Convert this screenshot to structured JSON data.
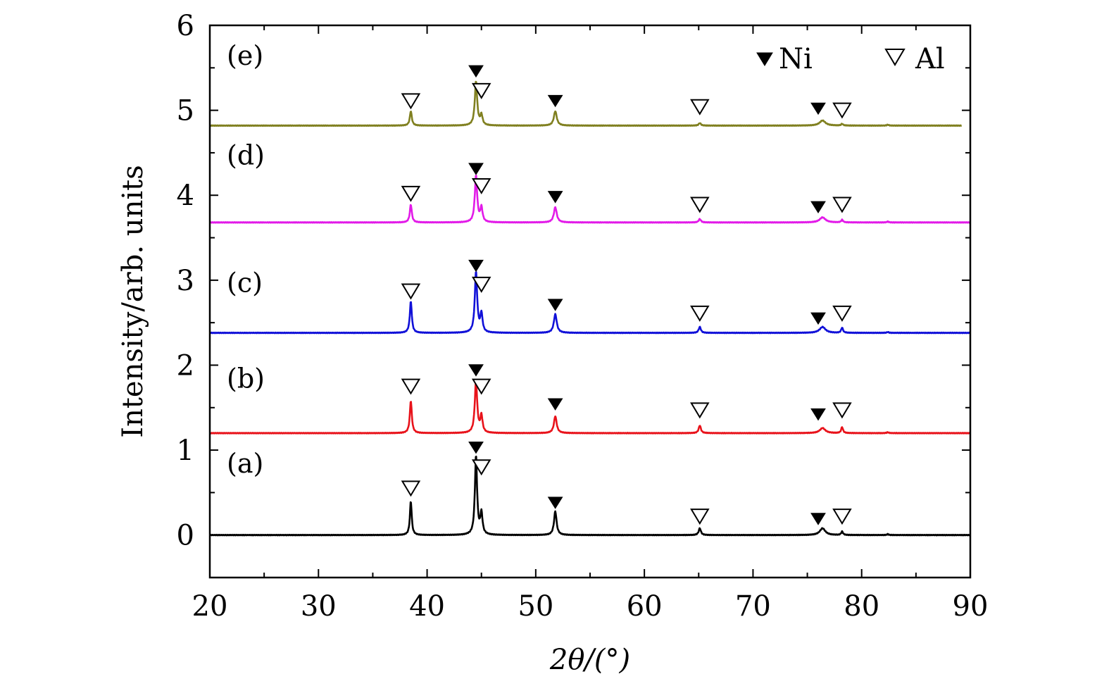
{
  "chart_data": {
    "type": "line",
    "title": "",
    "xlabel": "2θ/(°)",
    "ylabel": "Intensity/arb. units",
    "xlim": [
      20,
      90
    ],
    "ylim": [
      -0.5,
      6
    ],
    "xticks": [
      20,
      30,
      40,
      50,
      60,
      70,
      80,
      90
    ],
    "xtick_labels": [
      "20",
      "30",
      "40",
      "50",
      "60",
      "70",
      "80",
      "90"
    ],
    "yticks": [
      0,
      1,
      2,
      3,
      4,
      5,
      6
    ],
    "ytick_labels": [
      "0",
      "1",
      "2",
      "3",
      "4",
      "5",
      "6"
    ],
    "legend": {
      "position": "top-right",
      "entries": [
        {
          "symbol": "filled-down-triangle",
          "label": "Ni"
        },
        {
          "symbol": "open-down-triangle",
          "label": "Al"
        }
      ]
    },
    "peak_positions": {
      "Al": [
        38.5,
        44.7,
        65.1,
        78.2
      ],
      "Ni": [
        44.5,
        51.8,
        76.4
      ]
    },
    "series": [
      {
        "name": "(a)",
        "color": "#000000",
        "baseline": 0.0,
        "x_end": 90,
        "peaks": [
          [
            38.5,
            0.4,
            0.1
          ],
          [
            44.5,
            0.93,
            0.12
          ],
          [
            45.0,
            0.25,
            0.12
          ],
          [
            51.8,
            0.28,
            0.14
          ],
          [
            65.1,
            0.08,
            0.12
          ],
          [
            76.4,
            0.08,
            0.3
          ],
          [
            78.2,
            0.04,
            0.1
          ],
          [
            82.4,
            0.01,
            0.1
          ]
        ],
        "markers": [
          {
            "symbol": "open-down-triangle",
            "x": 38.5,
            "y": 0.55
          },
          {
            "symbol": "filled-down-triangle",
            "x": 44.5,
            "y": 1.03
          },
          {
            "symbol": "open-down-triangle",
            "x": 45.0,
            "y": 0.8
          },
          {
            "symbol": "filled-down-triangle",
            "x": 51.8,
            "y": 0.38
          },
          {
            "symbol": "open-down-triangle",
            "x": 65.1,
            "y": 0.22
          },
          {
            "symbol": "filled-down-triangle",
            "x": 76.0,
            "y": 0.19
          },
          {
            "symbol": "open-down-triangle",
            "x": 78.2,
            "y": 0.22
          }
        ]
      },
      {
        "name": "(b)",
        "color": "#e8121a",
        "baseline": 1.2,
        "x_end": 90,
        "peaks": [
          [
            38.5,
            0.38,
            0.11
          ],
          [
            44.5,
            0.62,
            0.13
          ],
          [
            45.0,
            0.2,
            0.12
          ],
          [
            51.8,
            0.2,
            0.15
          ],
          [
            65.1,
            0.09,
            0.12
          ],
          [
            76.4,
            0.06,
            0.3
          ],
          [
            78.2,
            0.07,
            0.1
          ],
          [
            82.4,
            0.01,
            0.1
          ]
        ],
        "markers": [
          {
            "symbol": "open-down-triangle",
            "x": 38.5,
            "y": 1.75
          },
          {
            "symbol": "filled-down-triangle",
            "x": 44.5,
            "y": 1.94
          },
          {
            "symbol": "open-down-triangle",
            "x": 45.0,
            "y": 1.75
          },
          {
            "symbol": "filled-down-triangle",
            "x": 51.8,
            "y": 1.54
          },
          {
            "symbol": "open-down-triangle",
            "x": 65.1,
            "y": 1.47
          },
          {
            "symbol": "filled-down-triangle",
            "x": 76.0,
            "y": 1.42
          },
          {
            "symbol": "open-down-triangle",
            "x": 78.2,
            "y": 1.47
          }
        ]
      },
      {
        "name": "(c)",
        "color": "#1010d8",
        "baseline": 2.38,
        "x_end": 90,
        "peaks": [
          [
            38.5,
            0.37,
            0.11
          ],
          [
            44.5,
            0.72,
            0.13
          ],
          [
            45.0,
            0.22,
            0.12
          ],
          [
            51.8,
            0.22,
            0.16
          ],
          [
            65.1,
            0.07,
            0.12
          ],
          [
            76.4,
            0.07,
            0.32
          ],
          [
            78.2,
            0.06,
            0.1
          ],
          [
            82.4,
            0.01,
            0.1
          ]
        ],
        "markers": [
          {
            "symbol": "open-down-triangle",
            "x": 38.5,
            "y": 2.87
          },
          {
            "symbol": "filled-down-triangle",
            "x": 44.5,
            "y": 3.17
          },
          {
            "symbol": "open-down-triangle",
            "x": 45.0,
            "y": 2.95
          },
          {
            "symbol": "filled-down-triangle",
            "x": 51.8,
            "y": 2.71
          },
          {
            "symbol": "open-down-triangle",
            "x": 65.1,
            "y": 2.61
          },
          {
            "symbol": "filled-down-triangle",
            "x": 76.0,
            "y": 2.55
          },
          {
            "symbol": "open-down-triangle",
            "x": 78.2,
            "y": 2.61
          }
        ]
      },
      {
        "name": "(d)",
        "color": "#e21ae8",
        "baseline": 3.68,
        "x_end": 90,
        "peaks": [
          [
            38.5,
            0.21,
            0.11
          ],
          [
            44.5,
            0.55,
            0.13
          ],
          [
            45.0,
            0.17,
            0.12
          ],
          [
            51.8,
            0.18,
            0.16
          ],
          [
            65.1,
            0.04,
            0.12
          ],
          [
            76.4,
            0.06,
            0.32
          ],
          [
            78.2,
            0.03,
            0.1
          ],
          [
            82.4,
            0.01,
            0.1
          ]
        ],
        "markers": [
          {
            "symbol": "open-down-triangle",
            "x": 38.5,
            "y": 4.02
          },
          {
            "symbol": "filled-down-triangle",
            "x": 44.5,
            "y": 4.31
          },
          {
            "symbol": "open-down-triangle",
            "x": 45.0,
            "y": 4.11
          },
          {
            "symbol": "filled-down-triangle",
            "x": 51.8,
            "y": 3.98
          },
          {
            "symbol": "open-down-triangle",
            "x": 65.1,
            "y": 3.89
          },
          {
            "symbol": "filled-down-triangle",
            "x": 76.0,
            "y": 3.86
          },
          {
            "symbol": "open-down-triangle",
            "x": 78.2,
            "y": 3.89
          }
        ]
      },
      {
        "name": "(e)",
        "color": "#808020",
        "baseline": 4.82,
        "x_end": 89.2,
        "peaks": [
          [
            38.5,
            0.17,
            0.11
          ],
          [
            44.5,
            0.52,
            0.13
          ],
          [
            45.0,
            0.12,
            0.12
          ],
          [
            51.8,
            0.17,
            0.16
          ],
          [
            65.1,
            0.03,
            0.12
          ],
          [
            76.4,
            0.06,
            0.32
          ],
          [
            78.2,
            0.02,
            0.1
          ],
          [
            82.4,
            0.01,
            0.1
          ]
        ],
        "markers": [
          {
            "symbol": "open-down-triangle",
            "x": 38.5,
            "y": 5.11
          },
          {
            "symbol": "filled-down-triangle",
            "x": 44.5,
            "y": 5.46
          },
          {
            "symbol": "open-down-triangle",
            "x": 45.0,
            "y": 5.23
          },
          {
            "symbol": "filled-down-triangle",
            "x": 51.8,
            "y": 5.11
          },
          {
            "symbol": "open-down-triangle",
            "x": 65.1,
            "y": 5.04
          },
          {
            "symbol": "filled-down-triangle",
            "x": 76.0,
            "y": 5.02
          },
          {
            "symbol": "open-down-triangle",
            "x": 78.2,
            "y": 5.0
          }
        ]
      }
    ],
    "panel_labels": [
      {
        "text": "(a)",
        "y": 0.85
      },
      {
        "text": "(b)",
        "y": 1.85
      },
      {
        "text": "(c)",
        "y": 2.98
      },
      {
        "text": "(d)",
        "y": 4.48
      },
      {
        "text": "(e)",
        "y": 5.65
      }
    ]
  }
}
